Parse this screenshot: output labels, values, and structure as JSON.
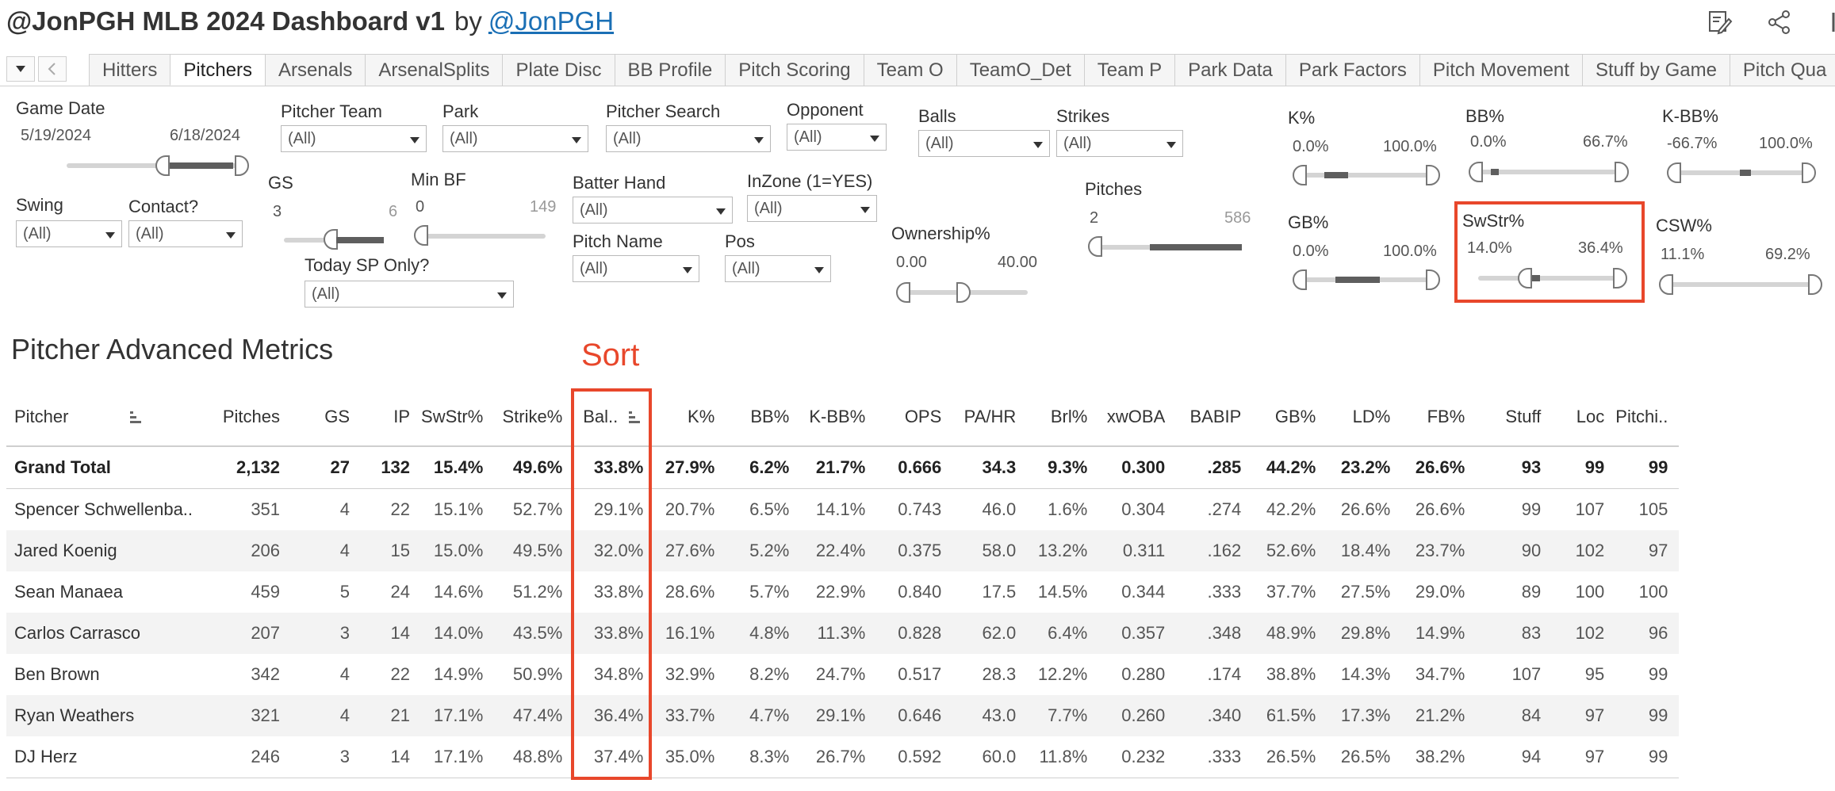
{
  "header": {
    "title": "@JonPGH MLB 2024 Dashboard v1",
    "by": "by",
    "handle": "@JonPGH"
  },
  "tabs": [
    "Hitters",
    "Pitchers",
    "Arsenals",
    "ArsenalSplits",
    "Plate Disc",
    "BB Profile",
    "Pitch Scoring",
    "Team O",
    "TeamO_Det",
    "Team P",
    "Park Data",
    "Park Factors",
    "Pitch Movement",
    "Stuff by Game",
    "Pitch Qua"
  ],
  "active_tab": "Pitchers",
  "filters": {
    "game_date": {
      "label": "Game Date",
      "min": "5/19/2024",
      "max": "6/18/2024"
    },
    "pitcher_team": {
      "label": "Pitcher Team",
      "value": "(All)"
    },
    "park": {
      "label": "Park",
      "value": "(All)"
    },
    "pitcher_search": {
      "label": "Pitcher Search",
      "value": "(All)"
    },
    "opponent": {
      "label": "Opponent",
      "value": "(All)"
    },
    "balls": {
      "label": "Balls",
      "value": "(All)"
    },
    "strikes": {
      "label": "Strikes",
      "value": "(All)"
    },
    "swing": {
      "label": "Swing",
      "value": "(All)"
    },
    "contact": {
      "label": "Contact?",
      "value": "(All)"
    },
    "gs": {
      "label": "GS",
      "min": "3",
      "max": "6"
    },
    "min_bf": {
      "label": "Min BF",
      "min": "0",
      "max": "149"
    },
    "batter_hand": {
      "label": "Batter Hand",
      "value": "(All)"
    },
    "inzone": {
      "label": "InZone (1=YES)",
      "value": "(All)"
    },
    "pitch_name": {
      "label": "Pitch Name",
      "value": "(All)"
    },
    "pos": {
      "label": "Pos",
      "value": "(All)"
    },
    "today_sp": {
      "label": "Today SP Only?",
      "value": "(All)"
    },
    "ownership": {
      "label": "Ownership%",
      "min": "0.00",
      "max": "40.00"
    },
    "pitches": {
      "label": "Pitches",
      "min": "2",
      "max": "586"
    },
    "k_pct": {
      "label": "K%",
      "min": "0.0%",
      "max": "100.0%"
    },
    "bb_pct": {
      "label": "BB%",
      "min": "0.0%",
      "max": "66.7%"
    },
    "k_bb_pct": {
      "label": "K-BB%",
      "min": "-66.7%",
      "max": "100.0%"
    },
    "gb_pct": {
      "label": "GB%",
      "min": "0.0%",
      "max": "100.0%"
    },
    "swstr_pct": {
      "label": "SwStr%",
      "min": "14.0%",
      "max": "36.4%"
    },
    "csw_pct": {
      "label": "CSW%",
      "min": "11.1%",
      "max": "69.2%"
    }
  },
  "annotation": {
    "sort_label": "Sort",
    "color": "#e8472b"
  },
  "table": {
    "title": "Pitcher Advanced Metrics",
    "columns": [
      "Pitcher",
      "Pitches",
      "GS",
      "IP",
      "SwStr%",
      "Strike%",
      "Bal..",
      "K%",
      "BB%",
      "K-BB%",
      "OPS",
      "PA/HR",
      "Brl%",
      "xwOBA",
      "BABIP",
      "GB%",
      "LD%",
      "FB%",
      "Stuff",
      "Loc",
      "Pitchi.."
    ],
    "grand_total": [
      "Grand Total",
      "2,132",
      "27",
      "132",
      "15.4%",
      "49.6%",
      "33.8%",
      "27.9%",
      "6.2%",
      "21.7%",
      "0.666",
      "34.3",
      "9.3%",
      "0.300",
      ".285",
      "44.2%",
      "23.2%",
      "26.6%",
      "93",
      "99",
      "99"
    ],
    "rows": [
      [
        "Spencer Schwellenba..",
        "351",
        "4",
        "22",
        "15.1%",
        "52.7%",
        "29.1%",
        "20.7%",
        "6.5%",
        "14.1%",
        "0.743",
        "46.0",
        "1.6%",
        "0.304",
        ".274",
        "42.2%",
        "26.6%",
        "26.6%",
        "99",
        "107",
        "105"
      ],
      [
        "Jared Koenig",
        "206",
        "4",
        "15",
        "15.0%",
        "49.5%",
        "32.0%",
        "27.6%",
        "5.2%",
        "22.4%",
        "0.375",
        "58.0",
        "13.2%",
        "0.311",
        ".162",
        "52.6%",
        "18.4%",
        "23.7%",
        "90",
        "102",
        "97"
      ],
      [
        "Sean Manaea",
        "459",
        "5",
        "24",
        "14.6%",
        "51.2%",
        "33.8%",
        "28.6%",
        "5.7%",
        "22.9%",
        "0.840",
        "17.5",
        "14.5%",
        "0.344",
        ".333",
        "37.7%",
        "27.5%",
        "29.0%",
        "89",
        "100",
        "100"
      ],
      [
        "Carlos Carrasco",
        "207",
        "3",
        "14",
        "14.0%",
        "43.5%",
        "33.8%",
        "16.1%",
        "4.8%",
        "11.3%",
        "0.828",
        "62.0",
        "6.4%",
        "0.357",
        ".348",
        "48.9%",
        "29.8%",
        "14.9%",
        "83",
        "102",
        "96"
      ],
      [
        "Ben Brown",
        "342",
        "4",
        "22",
        "14.9%",
        "50.9%",
        "34.8%",
        "32.9%",
        "8.2%",
        "24.7%",
        "0.517",
        "28.3",
        "12.2%",
        "0.280",
        ".174",
        "38.8%",
        "14.3%",
        "34.7%",
        "107",
        "95",
        "99"
      ],
      [
        "Ryan Weathers",
        "321",
        "4",
        "21",
        "17.1%",
        "47.4%",
        "36.4%",
        "33.7%",
        "4.7%",
        "29.1%",
        "0.646",
        "43.0",
        "7.7%",
        "0.260",
        ".340",
        "61.5%",
        "17.3%",
        "21.2%",
        "84",
        "97",
        "99"
      ],
      [
        "DJ Herz",
        "246",
        "3",
        "14",
        "17.1%",
        "48.8%",
        "37.4%",
        "35.0%",
        "8.3%",
        "26.7%",
        "0.592",
        "60.0",
        "11.8%",
        "0.232",
        ".333",
        "26.5%",
        "26.5%",
        "38.2%",
        "94",
        "97",
        "99"
      ]
    ]
  }
}
